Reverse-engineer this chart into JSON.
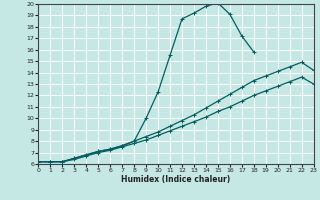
{
  "xlabel": "Humidex (Indice chaleur)",
  "xlim": [
    0,
    23
  ],
  "ylim": [
    6,
    20
  ],
  "xticks": [
    0,
    1,
    2,
    3,
    4,
    5,
    6,
    7,
    8,
    9,
    10,
    11,
    12,
    13,
    14,
    15,
    16,
    17,
    18,
    19,
    20,
    21,
    22,
    23
  ],
  "yticks": [
    6,
    7,
    8,
    9,
    10,
    11,
    12,
    13,
    14,
    15,
    16,
    17,
    18,
    19,
    20
  ],
  "bg_color": "#c5e8e5",
  "grid_color": "#ffffff",
  "line_color": "#006060",
  "line1_x": [
    0,
    1,
    2,
    3,
    4,
    5,
    6,
    7,
    8,
    9,
    10,
    11,
    12,
    13,
    14,
    15,
    16,
    17,
    18
  ],
  "line1_y": [
    6.2,
    6.2,
    6.2,
    6.5,
    6.8,
    7.1,
    7.3,
    7.6,
    8.0,
    10.0,
    12.3,
    15.5,
    18.7,
    19.2,
    19.8,
    20.1,
    19.1,
    17.2,
    15.8
  ],
  "line2_x": [
    0,
    1,
    2,
    3,
    4,
    5,
    6,
    7,
    8,
    9,
    10,
    11,
    12,
    13,
    14,
    15,
    16,
    17,
    18,
    19,
    20,
    21,
    22,
    23
  ],
  "line2_y": [
    6.2,
    6.2,
    6.2,
    6.5,
    6.8,
    7.1,
    7.3,
    7.6,
    8.0,
    8.4,
    8.8,
    9.3,
    9.8,
    10.3,
    10.9,
    11.5,
    12.1,
    12.7,
    13.3,
    13.7,
    14.1,
    14.5,
    14.9,
    14.2
  ],
  "line3_x": [
    0,
    1,
    2,
    3,
    4,
    5,
    6,
    7,
    8,
    9,
    10,
    11,
    12,
    13,
    14,
    15,
    16,
    17,
    18,
    19,
    20,
    21,
    22,
    23
  ],
  "line3_y": [
    6.2,
    6.2,
    6.2,
    6.4,
    6.7,
    7.0,
    7.2,
    7.5,
    7.8,
    8.1,
    8.5,
    8.9,
    9.3,
    9.7,
    10.1,
    10.6,
    11.0,
    11.5,
    12.0,
    12.4,
    12.8,
    13.2,
    13.6,
    13.0
  ],
  "marker": "+",
  "markersize": 3,
  "linewidth": 0.9
}
